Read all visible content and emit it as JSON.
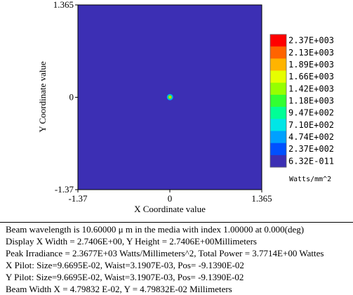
{
  "chart_data": {
    "type": "heatmap",
    "xlabel": "X Coordinate value",
    "ylabel": "Y Coordinate value",
    "x_ticks": [
      "-1.37",
      "0",
      "1.365"
    ],
    "y_ticks": [
      "1.365",
      "0",
      "-1.37"
    ],
    "xlim": [
      -1.37,
      1.365
    ],
    "ylim": [
      -1.37,
      1.365
    ],
    "background_color": "#3c2fb4",
    "beam_center": [
      0,
      0
    ],
    "colorbar": {
      "labels": [
        "2.37E+003",
        "2.13E+003",
        "1.89E+003",
        "1.66E+003",
        "1.42E+003",
        "1.18E+003",
        "9.47E+002",
        "7.10E+002",
        "4.74E+002",
        "2.37E+002",
        "6.32E-011"
      ],
      "unit": "Watts/mm^2",
      "colors": [
        "#ff0000",
        "#ff6400",
        "#ffb400",
        "#e6ff00",
        "#96ff00",
        "#32ff32",
        "#00ff96",
        "#00e6e6",
        "#00a0ff",
        "#0050ff",
        "#3c2fb4"
      ]
    }
  },
  "info": {
    "lines": [
      "Beam wavelength is 10.60000 μ m in the media with index 1.00000 at 0.000(deg)",
      "Display X Width = 2.7406E+00, Y Height = 2.7406E+00Millimeters",
      "Peak Irradiance = 2.3677E+03 Watts/Millimeters^2, Total Power = 3.7714E+00 Wattes",
      "X Pilot: Size=9.6695E-02, Waist=3.1907E-03, Pos= -9.1390E-02",
      "Y Pilot: Size=9.6695E-02, Waist=3.1907E-03, Pos= -9.1390E-02",
      "Beam Width X = 4.79832 E-02, Y = 4.79832E-02 Millimeters"
    ]
  }
}
